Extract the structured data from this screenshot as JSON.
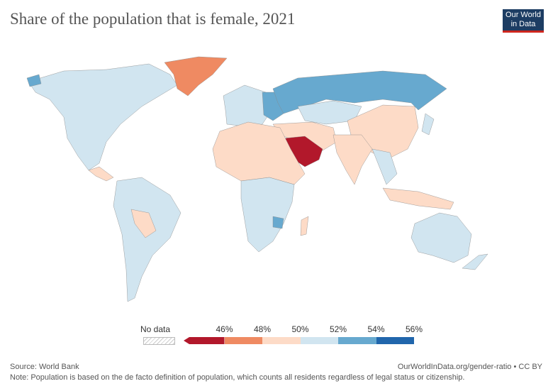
{
  "title": "Share of the population that is female, 2021",
  "logo": {
    "line1": "Our World",
    "line2": "in Data"
  },
  "legend": {
    "no_data": "No data",
    "ticks": [
      "46%",
      "48%",
      "50%",
      "52%",
      "54%",
      "56%"
    ],
    "colors": [
      "#b2182b",
      "#ef8a62",
      "#fddbc7",
      "#d1e5f0",
      "#67a9cf",
      "#2166ac"
    ]
  },
  "footer": {
    "source": "Source: World Bank",
    "url": "OurWorldInData.org/gender-ratio • CC BY",
    "note": "Note: Population is based on the de facto definition of population, which counts all residents regardless of legal status or citizenship."
  }
}
